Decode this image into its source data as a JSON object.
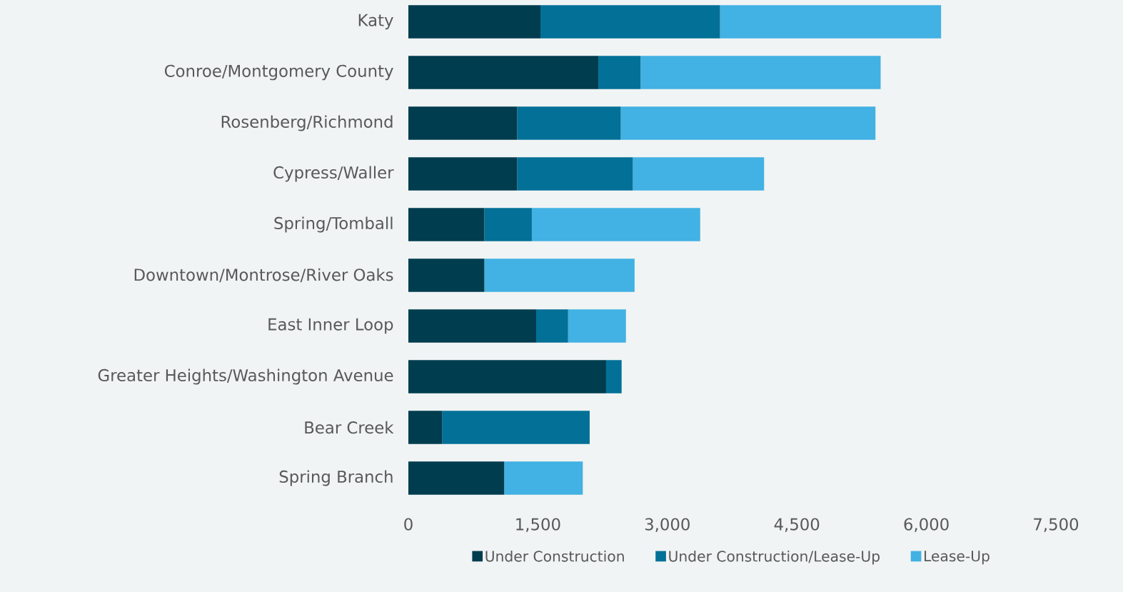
{
  "chart_data": {
    "type": "bar",
    "orientation": "horizontal",
    "stacked": true,
    "legend": "bottom",
    "grid": false,
    "categories": [
      "Katy",
      "Conroe/Montgomery County",
      "Rosenberg/Richmond",
      "Cypress/Waller",
      "Spring/Tomball",
      "Downtown/Montrose/River Oaks",
      "East Inner Loop",
      "Greater Heights/Washington Avenue",
      "Bear Creek",
      "Spring Branch"
    ],
    "series": [
      {
        "name": "Under Construction",
        "color": "#003d4f",
        "values": [
          1530,
          2200,
          1260,
          1260,
          880,
          880,
          1480,
          2290,
          390,
          1110
        ]
      },
      {
        "name": "Under Construction/Lease-Up",
        "color": "#037097",
        "values": [
          2080,
          490,
          1200,
          1340,
          550,
          0,
          370,
          180,
          1710,
          0
        ]
      },
      {
        "name": "Lease-Up",
        "color": "#42b1e3",
        "values": [
          2560,
          2780,
          2950,
          1520,
          1950,
          1740,
          670,
          0,
          0,
          910
        ]
      }
    ],
    "xlim": [
      0,
      7500
    ],
    "xticks": [
      0,
      {
        "value": 1500,
        "label": "1,500"
      },
      {
        "value": 3000,
        "label": "3,000"
      },
      {
        "value": 4500,
        "label": "4,500"
      },
      {
        "value": 6000,
        "label": "6,000"
      },
      {
        "value": 7500,
        "label": "7,500"
      }
    ]
  }
}
